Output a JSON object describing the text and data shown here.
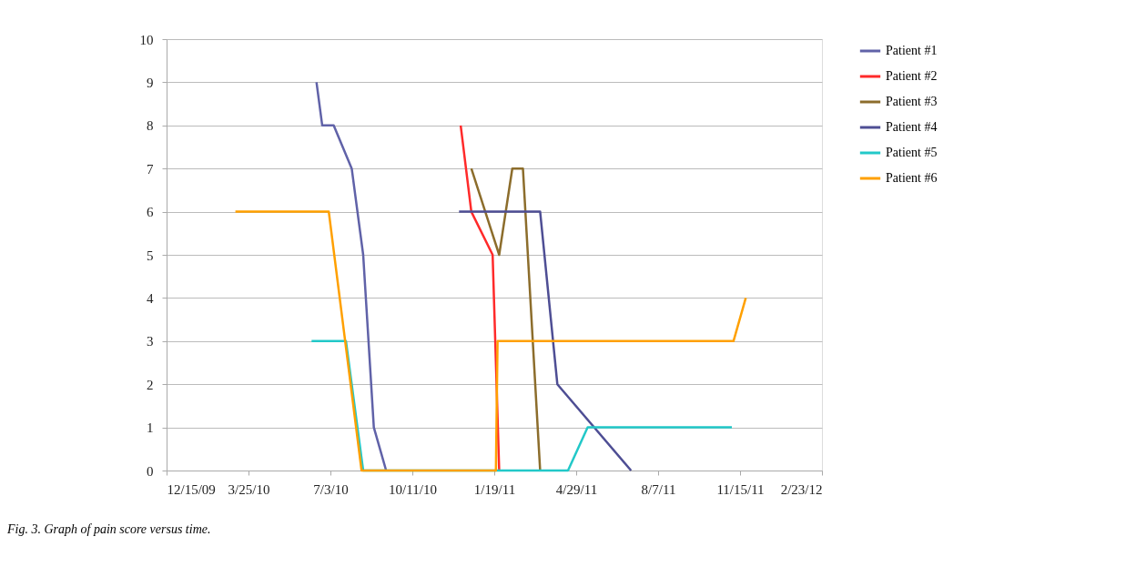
{
  "chart_data": {
    "type": "line",
    "xlim": [
      "2009-12-15",
      "2012-02-23"
    ],
    "xticks": [
      {
        "value": "2009-12-15",
        "label": "12/15/09"
      },
      {
        "value": "2010-03-25",
        "label": "3/25/10"
      },
      {
        "value": "2010-07-03",
        "label": "7/3/10"
      },
      {
        "value": "2010-10-11",
        "label": "10/11/10"
      },
      {
        "value": "2011-01-19",
        "label": "1/19/11"
      },
      {
        "value": "2011-04-29",
        "label": "4/29/11"
      },
      {
        "value": "2011-08-07",
        "label": "8/7/11"
      },
      {
        "value": "2011-11-15",
        "label": "11/15/11"
      },
      {
        "value": "2012-02-23",
        "label": "2/23/12"
      }
    ],
    "ylim": [
      0,
      10
    ],
    "yticks": [
      0,
      1,
      2,
      3,
      4,
      5,
      6,
      7,
      8,
      9,
      10
    ],
    "grid": "y",
    "legend": "right",
    "marker": "none",
    "line_style": "solid",
    "annotations": [
      "Fig. 3. Graph of  pain score versus time."
    ],
    "series": [
      {
        "name": "Patient #1",
        "color": "#6062a8",
        "x": [
          "2010-06-16",
          "2010-06-23",
          "2010-07-07",
          "2010-07-29",
          "2010-08-12",
          "2010-08-25",
          "2010-09-09"
        ],
        "values": [
          9,
          8,
          8,
          7,
          5,
          1,
          0
        ]
      },
      {
        "name": "Patient #2",
        "color": "#ff2a2a",
        "x": [
          "2010-12-09",
          "2010-12-22",
          "2011-01-17",
          "2011-01-25"
        ],
        "values": [
          8,
          6,
          5,
          0
        ]
      },
      {
        "name": "Patient #3",
        "color": "#8c6d2c",
        "x": [
          "2010-12-22",
          "2011-01-25",
          "2011-02-10",
          "2011-02-23",
          "2011-03-16"
        ],
        "values": [
          7,
          5,
          7,
          7,
          0
        ]
      },
      {
        "name": "Patient #4",
        "color": "#4e4e94",
        "x": [
          "2010-12-07",
          "2011-03-16",
          "2011-04-06",
          "2011-07-05"
        ],
        "values": [
          6,
          6,
          2,
          0
        ]
      },
      {
        "name": "Patient #5",
        "color": "#22c8c8",
        "x": [
          "2010-06-10",
          "2010-07-22",
          "2010-08-12",
          "2011-01-28",
          "2011-04-19",
          "2011-05-13",
          "2011-11-05"
        ],
        "values": [
          3,
          3,
          0,
          0,
          0,
          1,
          1
        ]
      },
      {
        "name": "Patient #6",
        "color": "#ffa000",
        "x": [
          "2010-03-09",
          "2010-07-01",
          "2010-08-10",
          "2011-01-21",
          "2011-01-23",
          "2011-11-07",
          "2011-11-22"
        ],
        "values": [
          6,
          6,
          0,
          0,
          3,
          3,
          4
        ]
      }
    ]
  }
}
